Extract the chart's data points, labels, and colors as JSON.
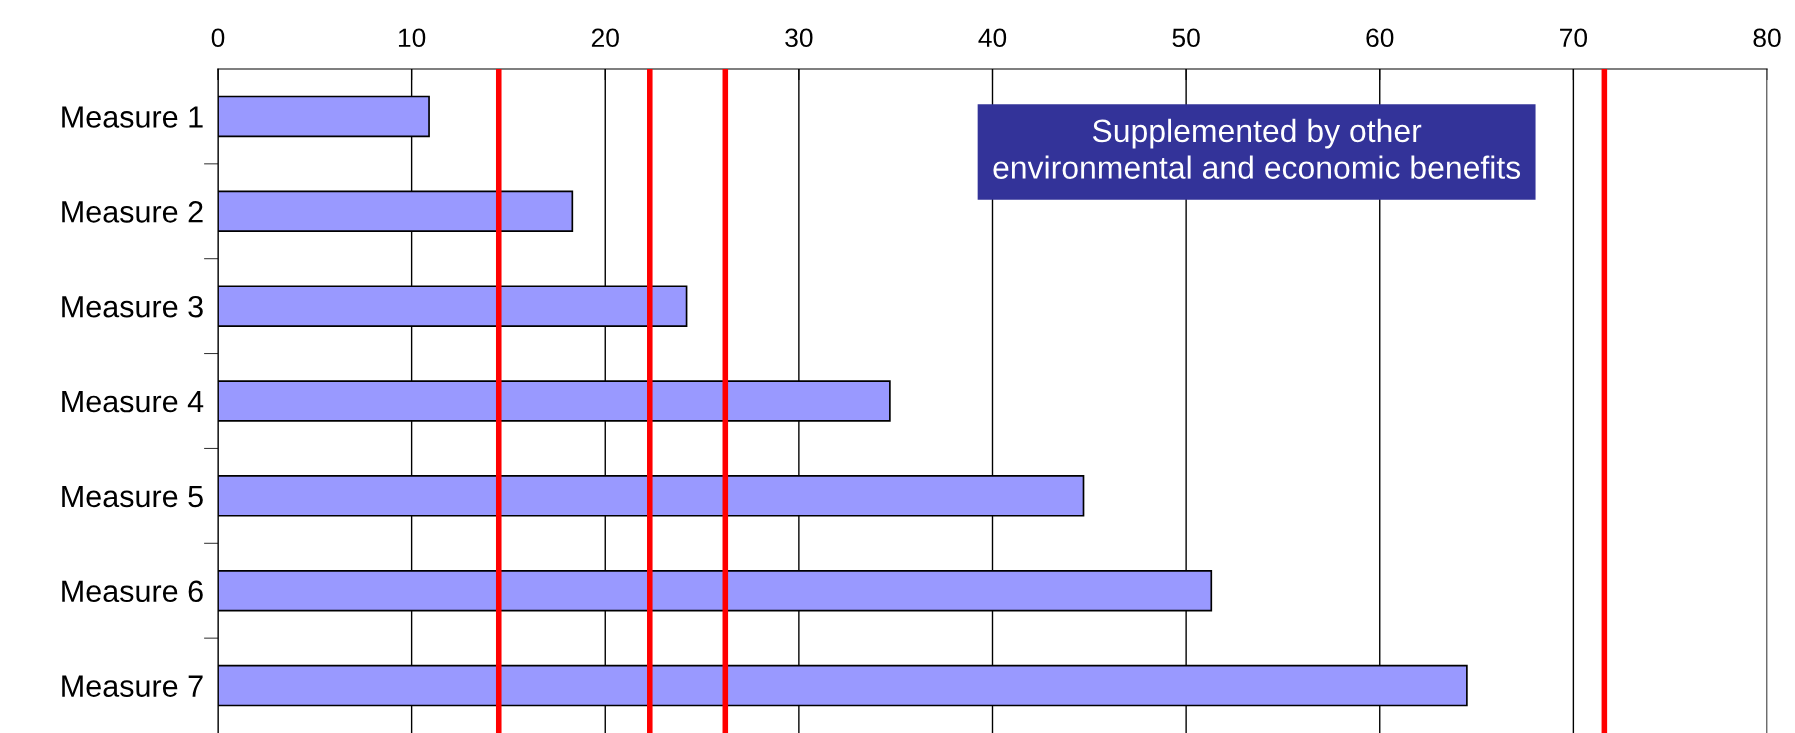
{
  "chart_data": {
    "type": "bar",
    "orientation": "horizontal",
    "categories": [
      "Measure 1",
      "Measure 2",
      "Measure 3",
      "Measure 4",
      "Measure 5",
      "Measure 6",
      "Measure 7"
    ],
    "values": [
      10.9,
      18.3,
      24.2,
      34.7,
      44.7,
      51.3,
      64.5
    ],
    "color": "#9999ff",
    "xlim": [
      0,
      80
    ],
    "xticks": [
      0,
      10,
      20,
      30,
      40,
      50,
      60,
      70,
      80
    ],
    "grid": "x",
    "ref_lines": [
      {
        "axis": "x",
        "value": 14.5,
        "color": "#ff0000"
      },
      {
        "axis": "x",
        "value": 22.3,
        "color": "#ff0000"
      },
      {
        "axis": "x",
        "value": 26.2,
        "color": "#ff0000"
      },
      {
        "axis": "x",
        "value": 71.6,
        "color": "#ff0000"
      }
    ],
    "annotations": [
      "Supplemented by other\nenvironmental and economic benefits"
    ]
  }
}
